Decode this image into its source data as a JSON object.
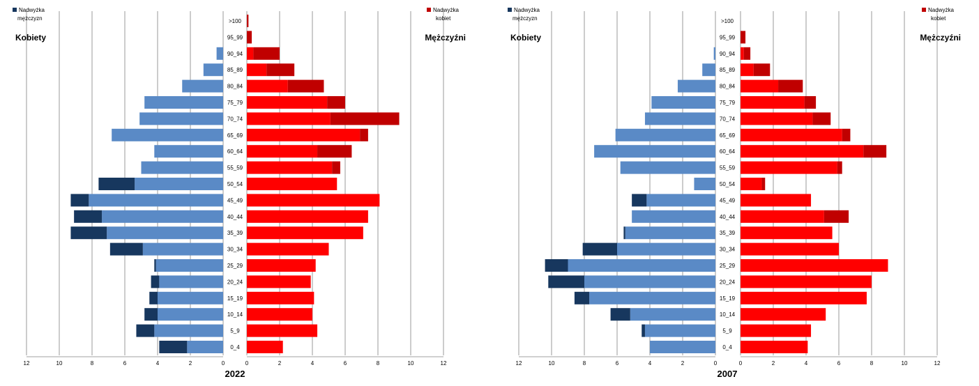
{
  "colors": {
    "women": "#5a8ac6",
    "women_surplus": "#17375e",
    "men": "#ff0000",
    "men_surplus": "#c00000",
    "grid": "#808080",
    "text": "#000000"
  },
  "charts": [
    {
      "year": "2022",
      "label_women": "Kobiety",
      "label_men": "Mężczyźni",
      "legend_left": [
        "Nadwyżka",
        "mężczyzn"
      ],
      "legend_right": [
        "Nadwyżka",
        "kobiet"
      ]
    },
    {
      "year": "2007",
      "label_women": "Kobiety",
      "label_men": "Mężczyźni",
      "legend_left": [
        "Nadwyżka",
        "mężczyzn"
      ],
      "legend_right": [
        "Nadwyżka",
        "kobiet"
      ]
    }
  ],
  "chart_data": [
    {
      "type": "bar",
      "title": "2022",
      "orientation": "horizontal-population-pyramid",
      "xlim": [
        0,
        12
      ],
      "xticks": [
        12,
        10,
        8,
        6,
        4,
        2,
        0
      ],
      "grid": true,
      "categories": [
        "0_4",
        "5_9",
        "10_14",
        "15_19",
        "20_24",
        "25_29",
        "30_34",
        "35_39",
        "40_44",
        "45_49",
        "50_54",
        "55_59",
        "60_64",
        "65_69",
        "70_74",
        "75_79",
        "80_84",
        "85_89",
        "90_94",
        "95_99",
        ">100"
      ],
      "series": [
        {
          "name": "Kobiety",
          "side": "left",
          "values": [
            2.2,
            4.2,
            4.0,
            4.0,
            3.9,
            4.1,
            4.9,
            7.1,
            7.4,
            8.2,
            5.4,
            5.0,
            4.2,
            6.8,
            5.1,
            4.8,
            2.5,
            1.2,
            0.4,
            0.0,
            0.0
          ]
        },
        {
          "name": "Nadwyżka mężczyzn",
          "side": "left",
          "values": [
            1.7,
            1.1,
            0.8,
            0.5,
            0.5,
            0.1,
            2.0,
            2.2,
            1.7,
            1.1,
            2.2,
            0.0,
            0.0,
            0.0,
            0.0,
            0.0,
            0.0,
            0.0,
            0.0,
            0.0,
            0.0
          ]
        },
        {
          "name": "Mężczyźni",
          "side": "right",
          "values": [
            2.2,
            4.3,
            4.0,
            4.1,
            3.9,
            4.2,
            5.0,
            7.1,
            7.4,
            8.1,
            5.5,
            5.2,
            4.3,
            6.9,
            5.1,
            4.9,
            2.5,
            1.2,
            0.4,
            0.0,
            0.0
          ]
        },
        {
          "name": "Nadwyżka kobiet",
          "side": "right",
          "values": [
            0.0,
            0.0,
            0.0,
            0.0,
            0.0,
            0.0,
            0.0,
            0.0,
            0.0,
            0.0,
            0.0,
            0.5,
            2.1,
            0.5,
            4.2,
            1.1,
            2.2,
            1.7,
            1.6,
            0.3,
            0.1
          ]
        }
      ]
    },
    {
      "type": "bar",
      "title": "2007",
      "orientation": "horizontal-population-pyramid",
      "xlim": [
        0,
        12
      ],
      "xticks": [
        12,
        10,
        8,
        6,
        4,
        2,
        0
      ],
      "grid": true,
      "categories": [
        "0_4",
        "5_9",
        "10_14",
        "15_19",
        "20_24",
        "25_29",
        "30_34",
        "35_39",
        "40_44",
        "45_49",
        "50_54",
        "55_59",
        "60_64",
        "65_69",
        "70_74",
        "75_79",
        "80_84",
        "85_89",
        "90_94",
        "95_99",
        ">100"
      ],
      "series": [
        {
          "name": "Kobiety",
          "side": "left",
          "values": [
            4.0,
            4.3,
            5.2,
            7.7,
            8.0,
            9.0,
            6.0,
            5.5,
            5.1,
            4.2,
            1.3,
            5.8,
            7.4,
            6.1,
            4.3,
            3.9,
            2.3,
            0.8,
            0.1,
            0.0,
            0.0
          ]
        },
        {
          "name": "Nadwyżka mężczyzn",
          "side": "left",
          "values": [
            0.0,
            0.2,
            1.2,
            0.9,
            2.2,
            1.4,
            2.1,
            0.1,
            0.0,
            0.9,
            0.0,
            0.0,
            0.0,
            0.0,
            0.0,
            0.0,
            0.0,
            0.0,
            0.0,
            0.0,
            0.0
          ]
        },
        {
          "name": "Mężczyźni",
          "side": "right",
          "values": [
            4.1,
            4.3,
            5.2,
            7.7,
            8.0,
            9.0,
            6.0,
            5.6,
            5.1,
            4.3,
            1.3,
            5.9,
            7.5,
            6.2,
            4.4,
            3.9,
            2.3,
            0.8,
            0.2,
            0.0,
            0.0
          ]
        },
        {
          "name": "Nadwyżka kobiet",
          "side": "right",
          "values": [
            0.0,
            0.0,
            0.0,
            0.0,
            0.0,
            0.0,
            0.0,
            0.0,
            1.5,
            0.0,
            0.2,
            0.3,
            1.4,
            0.5,
            1.1,
            0.7,
            1.5,
            1.0,
            0.4,
            0.3,
            0.0
          ]
        }
      ]
    }
  ]
}
